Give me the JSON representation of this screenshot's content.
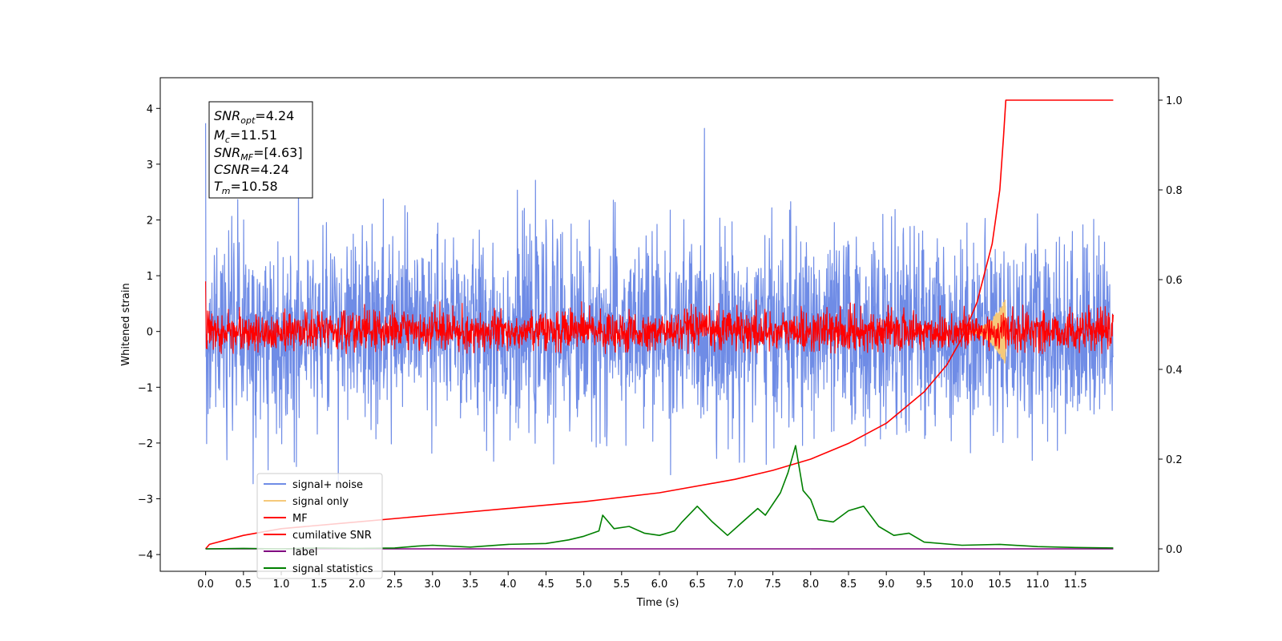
{
  "chart_data": {
    "type": "line",
    "xlabel": "Time (s)",
    "ylabel": "Whitened strain",
    "xlim": [
      -0.6,
      12.6
    ],
    "ylim": [
      -4.3,
      4.55
    ],
    "y2lim": [
      -0.05,
      1.05
    ],
    "x_ticks": [
      0.0,
      0.5,
      1.0,
      1.5,
      2.0,
      2.5,
      3.0,
      3.5,
      4.0,
      4.5,
      5.0,
      5.5,
      6.0,
      6.5,
      7.0,
      7.5,
      8.0,
      8.5,
      9.0,
      9.5,
      10.0,
      10.5,
      11.0,
      11.5
    ],
    "x_tick_labels": [
      "0.0",
      "0.5",
      "1.0",
      "1.5",
      "2.0",
      "2.5",
      "3.0",
      "3.5",
      "4.0",
      "4.5",
      "5.0",
      "5.5",
      "6.0",
      "6.5",
      "7.0",
      "7.5",
      "8.0",
      "8.5",
      "9.0",
      "9.5",
      "10.0",
      "10.5",
      "11.0",
      "11.5"
    ],
    "y_ticks": [
      -4,
      -3,
      -2,
      -1,
      0,
      1,
      2,
      3,
      4
    ],
    "y_tick_labels": [
      "−4",
      "−3",
      "−2",
      "−1",
      "0",
      "1",
      "2",
      "3",
      "4"
    ],
    "y2_ticks": [
      0.0,
      0.2,
      0.4,
      0.6,
      0.8,
      1.0
    ],
    "y2_tick_labels": [
      "0.0",
      "0.2",
      "0.4",
      "0.6",
      "0.8",
      "1.0"
    ],
    "grid": false,
    "legend_position": "bottom-left",
    "series": [
      {
        "name": "signal+ noise",
        "axis": "left",
        "color": "#6f8ce6",
        "kind": "noise",
        "t_start": 0.0,
        "t_end": 12.0,
        "std": 0.85,
        "max": 4.15,
        "min": -3.9
      },
      {
        "name": "signal only",
        "axis": "left",
        "color": "#f5c97a",
        "kind": "chirp",
        "t_start": 10.0,
        "t_end": 10.58,
        "amplitude": 0.6
      },
      {
        "name": "MF",
        "axis": "left",
        "color": "#ff0000",
        "kind": "noise",
        "t_start": 0.0,
        "t_end": 12.0,
        "std": 0.18,
        "max": 1.0,
        "min": -0.4
      },
      {
        "name": "cumilative SNR",
        "axis": "right",
        "color": "#ff0000",
        "x": [
          0.0,
          0.05,
          0.5,
          1.0,
          2.0,
          3.0,
          4.0,
          5.0,
          6.0,
          7.0,
          7.5,
          8.0,
          8.5,
          9.0,
          9.5,
          9.8,
          10.0,
          10.2,
          10.4,
          10.5,
          10.55,
          10.58,
          12.0
        ],
        "y": [
          0.0,
          0.01,
          0.03,
          0.045,
          0.06,
          0.075,
          0.09,
          0.105,
          0.125,
          0.155,
          0.175,
          0.2,
          0.235,
          0.28,
          0.35,
          0.41,
          0.47,
          0.55,
          0.68,
          0.8,
          0.92,
          1.0,
          1.0
        ]
      },
      {
        "name": "label",
        "axis": "right",
        "color": "#800080",
        "x": [
          0.0,
          12.0
        ],
        "y": [
          0.0,
          0.0
        ]
      },
      {
        "name": "signal statistics",
        "axis": "right",
        "color": "#008000",
        "x": [
          0.0,
          0.5,
          1.0,
          1.5,
          2.0,
          2.5,
          2.8,
          3.0,
          3.5,
          4.0,
          4.5,
          4.8,
          5.0,
          5.2,
          5.25,
          5.4,
          5.6,
          5.8,
          6.0,
          6.2,
          6.3,
          6.5,
          6.7,
          6.9,
          7.1,
          7.3,
          7.4,
          7.6,
          7.7,
          7.8,
          7.9,
          8.0,
          8.1,
          8.3,
          8.5,
          8.7,
          8.9,
          9.1,
          9.3,
          9.5,
          10.0,
          10.5,
          11.0,
          11.5,
          12.0
        ],
        "y": [
          0.0,
          0.001,
          0.0,
          0.002,
          0.001,
          0.002,
          0.006,
          0.008,
          0.004,
          0.01,
          0.012,
          0.02,
          0.028,
          0.04,
          0.075,
          0.045,
          0.05,
          0.035,
          0.03,
          0.04,
          0.06,
          0.095,
          0.06,
          0.03,
          0.06,
          0.09,
          0.075,
          0.125,
          0.17,
          0.23,
          0.13,
          0.11,
          0.065,
          0.06,
          0.085,
          0.095,
          0.05,
          0.03,
          0.035,
          0.015,
          0.008,
          0.01,
          0.005,
          0.003,
          0.002
        ]
      }
    ],
    "annotations": {
      "label_event": {
        "x": 8.0,
        "y": -3.9
      }
    }
  },
  "info_box": {
    "lines": [
      {
        "sym": "SNR",
        "sub": "opt",
        "value": "=4.24"
      },
      {
        "sym": "M",
        "sub": "c",
        "value": "=11.51"
      },
      {
        "sym": "SNR",
        "sub": "MF",
        "value": "=[4.63]"
      },
      {
        "sym": "CSNR",
        "sub": "",
        "value": "=4.24"
      },
      {
        "sym": "T",
        "sub": "m",
        "value": "=10.58"
      }
    ]
  }
}
